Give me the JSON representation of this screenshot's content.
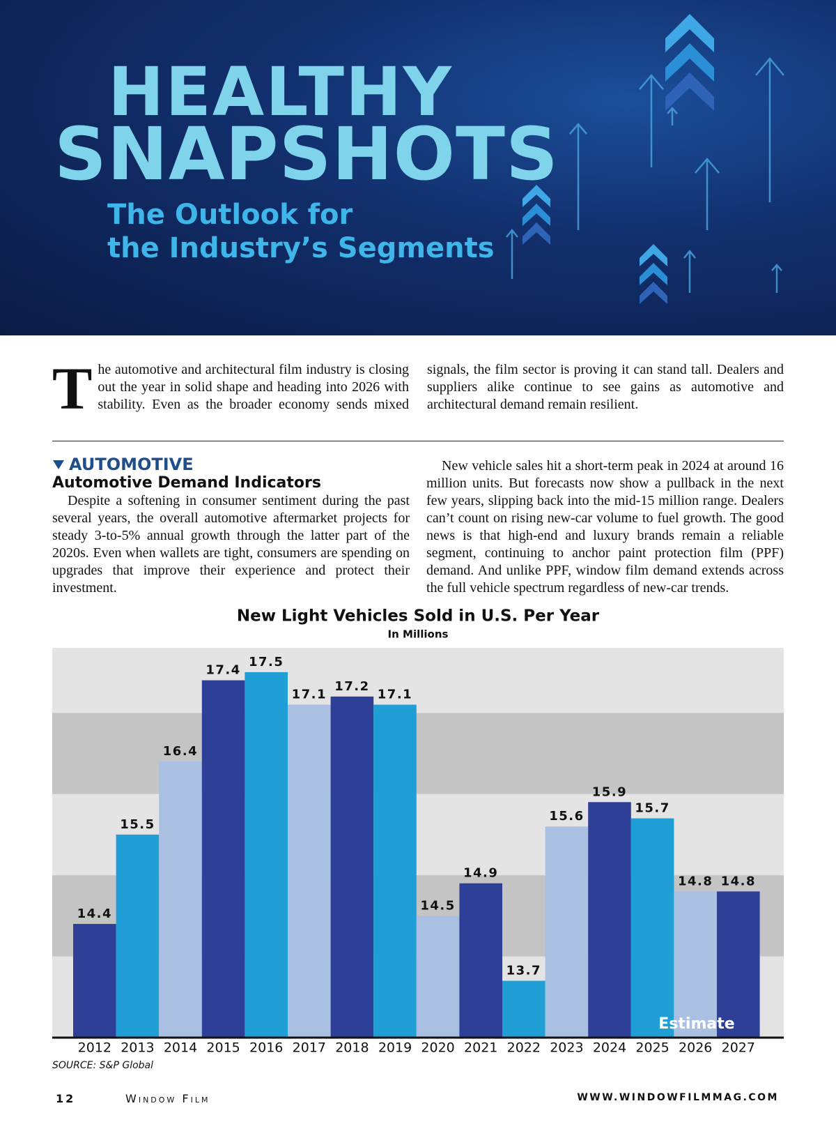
{
  "header": {
    "title_line1": "HEALTHY",
    "title_line2": "SNAPSHOTS",
    "subtitle_line1": "The Outlook for",
    "subtitle_line2": "the Industry’s Segments"
  },
  "intro": {
    "drop_cap": "T",
    "text": "he automotive and architectural film industry is closing out the year in solid shape and heading into 2026 with stability. Even as the broader economy sends mixed signals, the film sector is proving it can stand tall. Dealers and suppliers alike continue to see gains as automotive and architectural demand remain resilient."
  },
  "section": {
    "label": "AUTOMOTIVE",
    "heading": "Automotive Demand Indicators",
    "paragraphs": [
      "Despite a softening in consumer sentiment during the past several years, the overall automotive aftermarket projects for steady 3-to-5% annual growth through the latter part of the 2020s. Even when wallets are tight, consumers are spending on upgrades that improve their experience and protect their investment.",
      "New vehicle sales hit a short-term peak in 2024 at around 16 million units. But forecasts now show a pullback in the next few years, slipping back into the mid-15 million range. Dealers can’t count on rising new-car volume to fuel growth. The good news is that high-end and luxury brands remain a reliable segment, continuing to anchor paint protection film (PPF) demand. And unlike PPF, window film demand extends across the full vehicle spectrum regardless of new-car trends."
    ]
  },
  "chart_data": {
    "type": "bar",
    "title": "New Light Vehicles Sold in U.S. Per Year",
    "subtitle": "In Millions",
    "categories": [
      "2012",
      "2013",
      "2014",
      "2015",
      "2016",
      "2017",
      "2018",
      "2019",
      "2020",
      "2021",
      "2022",
      "2023",
      "2024",
      "2025",
      "2026",
      "2027"
    ],
    "values": [
      14.4,
      15.5,
      16.4,
      17.4,
      17.5,
      17.1,
      17.2,
      17.1,
      14.5,
      14.9,
      13.7,
      15.6,
      15.9,
      15.7,
      14.8,
      14.8
    ],
    "colors": [
      "#2e3f98",
      "#1f9fd6",
      "#a9c0e3",
      "#2e3f98",
      "#1f9fd6",
      "#a9c0e3",
      "#2e3f98",
      "#1f9fd6",
      "#a9c0e3",
      "#2e3f98",
      "#1f9fd6",
      "#a9c0e3",
      "#2e3f98",
      "#1f9fd6",
      "#a9c0e3",
      "#2e3f98"
    ],
    "ylim": [
      13,
      17.8
    ],
    "yticks": [
      13,
      14,
      15,
      16,
      17
    ],
    "grid": true,
    "annotation": "Estimate",
    "source": "SOURCE: S&P Global"
  },
  "footer": {
    "page": "12",
    "publication": "Window Film",
    "url": "WWW.WINDOWFILMMAG.COM"
  }
}
